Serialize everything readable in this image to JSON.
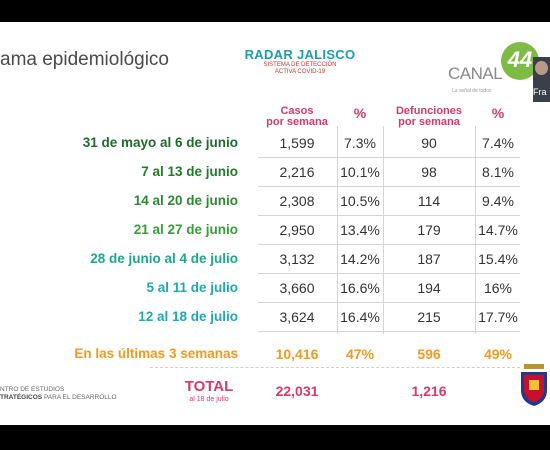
{
  "slide": {
    "title": "ama epidemiológico",
    "radar": {
      "title": "RADAR JALISCO",
      "line1": "SISTEMA DE DETECCIÓN",
      "line2": "ACTIVA COVID-19"
    },
    "channel": {
      "word": "CANAL",
      "number": "44",
      "tagline": "La señal de todos"
    },
    "camera_label": "Fra",
    "columns": {
      "cases_line1": "Casos",
      "cases_line2": "por semana",
      "pct1": "%",
      "deaths_line1": "Defunciones",
      "deaths_line2": "por semana",
      "pct2": "%"
    },
    "rows": [
      {
        "label": "31 de mayo al 6 de junio",
        "cases": "1,599",
        "cases_pct": "7.3%",
        "deaths": "90",
        "deaths_pct": "7.4%"
      },
      {
        "label": "7 al 13 de junio",
        "cases": "2,216",
        "cases_pct": "10.1%",
        "deaths": "98",
        "deaths_pct": "8.1%"
      },
      {
        "label": "14 al 20 de junio",
        "cases": "2,308",
        "cases_pct": "10.5%",
        "deaths": "114",
        "deaths_pct": "9.4%"
      },
      {
        "label": "21 al 27 de junio",
        "cases": "2,950",
        "cases_pct": "13.4%",
        "deaths": "179",
        "deaths_pct": "14.7%"
      },
      {
        "label": "28 de junio al 4 de julio",
        "cases": "3,132",
        "cases_pct": "14.2%",
        "deaths": "187",
        "deaths_pct": "15.4%"
      },
      {
        "label": "5 al 11 de julio",
        "cases": "3,660",
        "cases_pct": "16.6%",
        "deaths": "194",
        "deaths_pct": "16%"
      },
      {
        "label": "12 al 18 de julio",
        "cases": "3,624",
        "cases_pct": "16.4%",
        "deaths": "215",
        "deaths_pct": "17.7%"
      }
    ],
    "row_colors": [
      "#1e6b2e",
      "#237a2c",
      "#2a8a30",
      "#34a035",
      "#1aa98a",
      "#1da8b8",
      "#1da8b8"
    ],
    "summary": {
      "label": "En las últimas 3 semanas",
      "cases": "10,416",
      "cases_pct": "47%",
      "deaths": "596",
      "deaths_pct": "49%"
    },
    "total": {
      "label": "TOTAL",
      "sub": "al 18 de julio",
      "cases": "22,031",
      "deaths": "1,216"
    },
    "footer": {
      "line1": "NTRO DE ESTUDIOS",
      "line2_bold": "TRATÉGICOS",
      "line2_rest": " PARA EL DESARROLLO"
    }
  }
}
